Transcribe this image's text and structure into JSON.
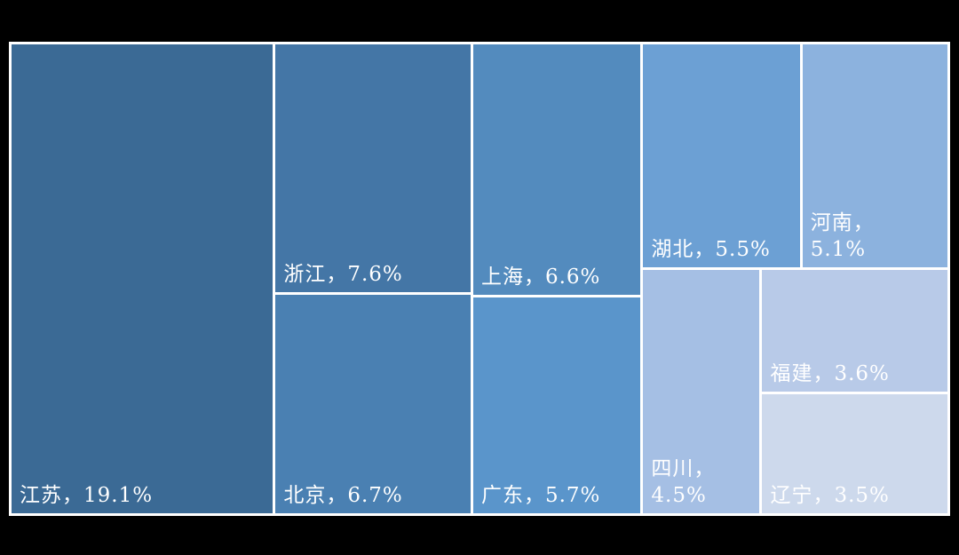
{
  "chart_data": {
    "type": "treemap",
    "title": "",
    "unit": "%",
    "background": "#000000",
    "separator_color": "#ffffff",
    "label_color": "#ffffff",
    "items": [
      {
        "name": "江苏",
        "value": 19.1,
        "label": "江苏，19.1%",
        "color": "#3b6a95"
      },
      {
        "name": "浙江",
        "value": 7.6,
        "label": "浙江，7.6%",
        "color": "#4476a6"
      },
      {
        "name": "北京",
        "value": 6.7,
        "label": "北京，6.7%",
        "color": "#4a80b2"
      },
      {
        "name": "上海",
        "value": 6.6,
        "label": "上海，6.6%",
        "color": "#538bbe"
      },
      {
        "name": "广东",
        "value": 5.7,
        "label": "广东，5.7%",
        "color": "#5a95cb"
      },
      {
        "name": "湖北",
        "value": 5.5,
        "label": "湖北，5.5%",
        "color": "#6ca0d4"
      },
      {
        "name": "河南",
        "value": 5.1,
        "label": "河南，\n5.1%",
        "color": "#8cb2de"
      },
      {
        "name": "四川",
        "value": 4.5,
        "label": "四川，\n4.5%",
        "color": "#a5bfe4"
      },
      {
        "name": "福建",
        "value": 3.6,
        "label": "福建，3.6%",
        "color": "#b8cae8"
      },
      {
        "name": "辽宁",
        "value": 3.5,
        "label": "辽宁，3.5%",
        "color": "#cdd9ec"
      }
    ]
  }
}
